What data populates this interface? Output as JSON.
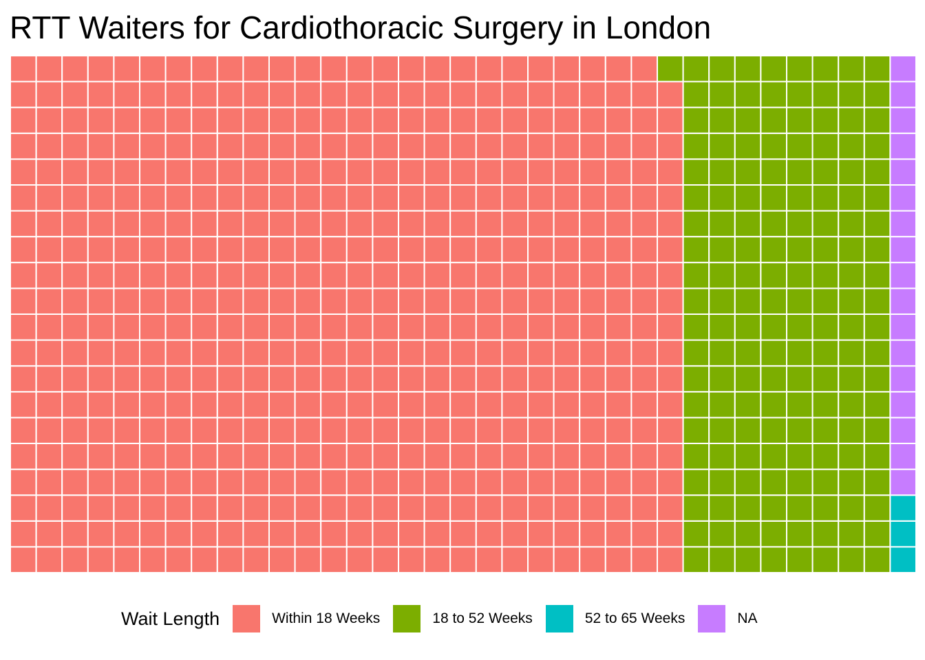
{
  "chart_data": {
    "type": "waffle",
    "title": "RTT Waiters for Cardiothoracic Surgery in London",
    "grid": {
      "columns": 35,
      "rows": 20,
      "fill_order": "column-major, bottom-to-top"
    },
    "series": [
      {
        "name": "Within 18 Weeks",
        "count": 519,
        "color": "#F8766D"
      },
      {
        "name": "18 to 52 Weeks",
        "count": 161,
        "color": "#7CAE00"
      },
      {
        "name": "52 to 65 Weeks",
        "count": 3,
        "color": "#00BFC4"
      },
      {
        "name": "NA",
        "count": 17,
        "color": "#C77CFF"
      }
    ],
    "legend": {
      "title": "Wait Length",
      "position": "bottom",
      "entries": [
        "Within 18 Weeks",
        "18 to 52 Weeks",
        "52 to 65 Weeks",
        "NA"
      ]
    },
    "tile_border_color": "#FFFFFF"
  }
}
